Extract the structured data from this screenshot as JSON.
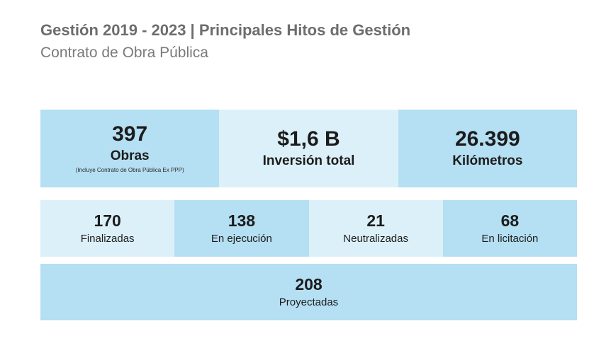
{
  "header": {
    "title": "Gestión 2019 - 2023 | Principales Hitos de Gestión",
    "subtitle": "Contrato de Obra Pública"
  },
  "colors": {
    "dark_cell": "#b5dff2",
    "light_cell": "#dcf0f9",
    "title": "#6d6d6d"
  },
  "summary": [
    {
      "value": "397",
      "label": "Obras",
      "note": "(Incluye Contrato de Obra Pública Ex PPP)"
    },
    {
      "value": "$1,6 B",
      "label": "Inversión total"
    },
    {
      "value": "26.399",
      "label": "Kilómetros"
    }
  ],
  "status": [
    {
      "value": "170",
      "label": "Finalizadas"
    },
    {
      "value": "138",
      "label": "En ejecución"
    },
    {
      "value": "21",
      "label": "Neutralizadas"
    },
    {
      "value": "68",
      "label": "En licitación"
    }
  ],
  "projected": {
    "value": "208",
    "label": "Proyectadas"
  }
}
